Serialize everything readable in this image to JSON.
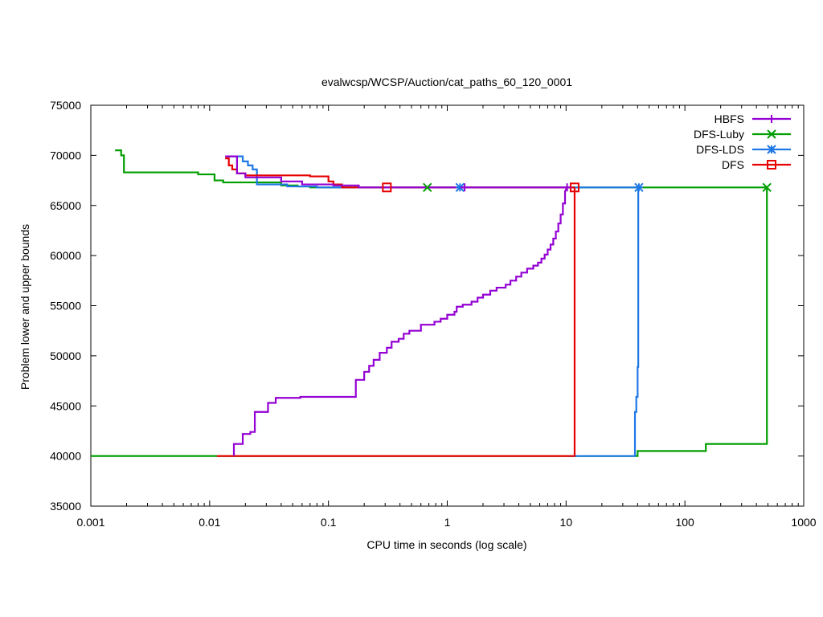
{
  "chart_data": {
    "type": "line",
    "title": "evalwcsp/WCSP/Auction/cat_paths_60_120_0001",
    "xlabel": "CPU time in seconds (log scale)",
    "ylabel": "Problem lower and upper bounds",
    "x_scale": "log",
    "xlim": [
      0.001,
      1000
    ],
    "ylim": [
      35000,
      75000
    ],
    "x_ticks": [
      0.001,
      0.01,
      0.1,
      1,
      10,
      100,
      1000
    ],
    "x_tick_labels": [
      "0.001",
      "0.01",
      "0.1",
      "1",
      "10",
      "100",
      "1000"
    ],
    "y_ticks": [
      35000,
      40000,
      45000,
      50000,
      55000,
      60000,
      65000,
      70000,
      75000
    ],
    "y_tick_labels": [
      "35000",
      "40000",
      "45000",
      "50000",
      "55000",
      "60000",
      "65000",
      "70000",
      "75000"
    ],
    "grid": false,
    "legend_position": "top-right",
    "series": [
      {
        "name": "HBFS",
        "color": "#9400d3",
        "marker": "plus",
        "marker_points": [
          [
            1.4,
            66800
          ],
          [
            10.2,
            66800
          ]
        ],
        "upper": [
          [
            0.0135,
            69900
          ],
          [
            0.017,
            69900
          ],
          [
            0.017,
            68200
          ],
          [
            0.02,
            68200
          ],
          [
            0.02,
            67800
          ],
          [
            0.04,
            67800
          ],
          [
            0.04,
            67400
          ],
          [
            0.06,
            67400
          ],
          [
            0.06,
            67100
          ],
          [
            0.11,
            67100
          ],
          [
            0.11,
            67000
          ],
          [
            0.18,
            67000
          ],
          [
            0.18,
            66800
          ],
          [
            10.2,
            66800
          ]
        ],
        "lower": [
          [
            0.016,
            40000
          ],
          [
            0.016,
            41200
          ],
          [
            0.019,
            41200
          ],
          [
            0.019,
            42200
          ],
          [
            0.022,
            42200
          ],
          [
            0.022,
            42400
          ],
          [
            0.024,
            42400
          ],
          [
            0.024,
            44400
          ],
          [
            0.031,
            44400
          ],
          [
            0.031,
            45300
          ],
          [
            0.036,
            45300
          ],
          [
            0.036,
            45800
          ],
          [
            0.058,
            45800
          ],
          [
            0.058,
            45900
          ],
          [
            0.17,
            45900
          ],
          [
            0.17,
            47600
          ],
          [
            0.2,
            47600
          ],
          [
            0.2,
            48400
          ],
          [
            0.22,
            48400
          ],
          [
            0.22,
            49000
          ],
          [
            0.24,
            49000
          ],
          [
            0.24,
            49600
          ],
          [
            0.27,
            49600
          ],
          [
            0.27,
            50300
          ],
          [
            0.31,
            50300
          ],
          [
            0.31,
            50800
          ],
          [
            0.34,
            50800
          ],
          [
            0.34,
            51400
          ],
          [
            0.39,
            51400
          ],
          [
            0.39,
            51700
          ],
          [
            0.43,
            51700
          ],
          [
            0.43,
            52200
          ],
          [
            0.48,
            52200
          ],
          [
            0.48,
            52500
          ],
          [
            0.6,
            52500
          ],
          [
            0.6,
            53100
          ],
          [
            0.78,
            53100
          ],
          [
            0.78,
            53400
          ],
          [
            0.88,
            53400
          ],
          [
            0.88,
            53700
          ],
          [
            1.0,
            53700
          ],
          [
            1.0,
            54100
          ],
          [
            1.15,
            54100
          ],
          [
            1.15,
            54400
          ],
          [
            1.2,
            54400
          ],
          [
            1.2,
            54900
          ],
          [
            1.35,
            54900
          ],
          [
            1.35,
            55100
          ],
          [
            1.6,
            55100
          ],
          [
            1.6,
            55400
          ],
          [
            1.8,
            55400
          ],
          [
            1.8,
            55800
          ],
          [
            2.0,
            55800
          ],
          [
            2.0,
            56100
          ],
          [
            2.3,
            56100
          ],
          [
            2.3,
            56500
          ],
          [
            2.6,
            56500
          ],
          [
            2.6,
            56800
          ],
          [
            3.1,
            56800
          ],
          [
            3.1,
            57100
          ],
          [
            3.4,
            57100
          ],
          [
            3.4,
            57500
          ],
          [
            3.8,
            57500
          ],
          [
            3.8,
            57900
          ],
          [
            4.2,
            57900
          ],
          [
            4.2,
            58300
          ],
          [
            4.7,
            58300
          ],
          [
            4.7,
            58700
          ],
          [
            5.3,
            58700
          ],
          [
            5.3,
            59000
          ],
          [
            5.8,
            59000
          ],
          [
            5.8,
            59300
          ],
          [
            6.2,
            59300
          ],
          [
            6.2,
            59700
          ],
          [
            6.6,
            59700
          ],
          [
            6.6,
            60100
          ],
          [
            7.0,
            60100
          ],
          [
            7.0,
            60600
          ],
          [
            7.4,
            60600
          ],
          [
            7.4,
            61100
          ],
          [
            7.8,
            61100
          ],
          [
            7.8,
            61700
          ],
          [
            8.2,
            61700
          ],
          [
            8.2,
            62400
          ],
          [
            8.6,
            62400
          ],
          [
            8.6,
            63200
          ],
          [
            9.0,
            63200
          ],
          [
            9.0,
            64100
          ],
          [
            9.4,
            64100
          ],
          [
            9.4,
            65200
          ],
          [
            9.8,
            65200
          ],
          [
            9.8,
            66400
          ],
          [
            10.2,
            66800
          ]
        ]
      },
      {
        "name": "DFS-Luby",
        "color": "#009e00",
        "marker": "cross",
        "marker_points": [
          [
            0.68,
            66800
          ],
          [
            490,
            66800
          ]
        ],
        "upper": [
          [
            0.0016,
            70500
          ],
          [
            0.0018,
            70500
          ],
          [
            0.0018,
            70000
          ],
          [
            0.0019,
            70000
          ],
          [
            0.0019,
            68300
          ],
          [
            0.008,
            68300
          ],
          [
            0.008,
            68100
          ],
          [
            0.011,
            68100
          ],
          [
            0.011,
            67500
          ],
          [
            0.013,
            67500
          ],
          [
            0.013,
            67300
          ],
          [
            0.04,
            67300
          ],
          [
            0.04,
            67000
          ],
          [
            0.055,
            67000
          ],
          [
            0.055,
            66900
          ],
          [
            0.07,
            66900
          ],
          [
            0.07,
            66800
          ],
          [
            490,
            66800
          ]
        ],
        "lower": [
          [
            0.001,
            40000
          ],
          [
            40,
            40000
          ],
          [
            40,
            40500
          ],
          [
            150,
            40500
          ],
          [
            150,
            41200
          ],
          [
            490,
            41200
          ],
          [
            490,
            66800
          ]
        ]
      },
      {
        "name": "DFS-LDS",
        "color": "#1e78e6",
        "marker": "star",
        "marker_points": [
          [
            1.28,
            66800
          ],
          [
            41,
            66800
          ]
        ],
        "upper": [
          [
            0.014,
            69900
          ],
          [
            0.019,
            69900
          ],
          [
            0.019,
            69400
          ],
          [
            0.021,
            69400
          ],
          [
            0.021,
            69000
          ],
          [
            0.023,
            69000
          ],
          [
            0.023,
            68600
          ],
          [
            0.025,
            68600
          ],
          [
            0.025,
            67100
          ],
          [
            0.045,
            67100
          ],
          [
            0.045,
            66900
          ],
          [
            0.08,
            66900
          ],
          [
            0.08,
            66800
          ],
          [
            41,
            66800
          ]
        ],
        "lower": [
          [
            10,
            40000
          ],
          [
            38,
            40000
          ],
          [
            38,
            44400
          ],
          [
            39,
            44400
          ],
          [
            39,
            45900
          ],
          [
            40,
            45900
          ],
          [
            40,
            48900
          ],
          [
            40.5,
            48900
          ],
          [
            40.5,
            66800
          ]
        ]
      },
      {
        "name": "DFS",
        "color": "#e60000",
        "marker": "square",
        "marker_points": [
          [
            0.31,
            66800
          ],
          [
            11.8,
            66800
          ]
        ],
        "upper": [
          [
            0.0135,
            69700
          ],
          [
            0.0145,
            69700
          ],
          [
            0.0145,
            69000
          ],
          [
            0.0155,
            69000
          ],
          [
            0.0155,
            68600
          ],
          [
            0.017,
            68600
          ],
          [
            0.017,
            68200
          ],
          [
            0.02,
            68200
          ],
          [
            0.02,
            68000
          ],
          [
            0.07,
            68000
          ],
          [
            0.07,
            67900
          ],
          [
            0.1,
            67900
          ],
          [
            0.1,
            67400
          ],
          [
            0.11,
            67400
          ],
          [
            0.11,
            67100
          ],
          [
            0.13,
            67100
          ],
          [
            0.13,
            66800
          ],
          [
            11.8,
            66800
          ]
        ],
        "lower": [
          [
            0.0115,
            40000
          ],
          [
            11.8,
            40000
          ],
          [
            11.8,
            66800
          ]
        ]
      }
    ]
  }
}
